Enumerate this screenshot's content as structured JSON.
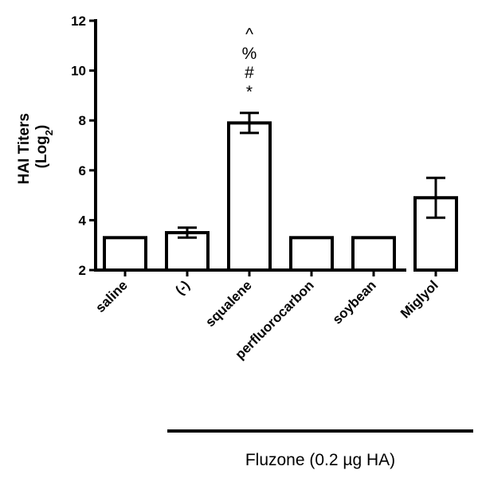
{
  "chart_data": {
    "type": "bar",
    "title": "",
    "ylabel_line1": "HAI Titers",
    "ylabel_line2_prefix": "(Log",
    "ylabel_line2_sub": "2",
    "ylabel_line2_suffix": ")",
    "ylim": [
      2,
      12
    ],
    "yticks": [
      2,
      4,
      6,
      8,
      10,
      12
    ],
    "categories": [
      "saline",
      "(-)",
      "squalene",
      "perfluorocarbon",
      "soybean",
      "Miglyol"
    ],
    "values": [
      3.3,
      3.5,
      7.9,
      3.3,
      3.3,
      4.9
    ],
    "errors": [
      0,
      0.2,
      0.4,
      0,
      0,
      0.8
    ],
    "annotations": [
      {
        "category": "squalene",
        "lines": [
          "^",
          "%",
          "#",
          "*"
        ]
      }
    ],
    "group": {
      "label": "Fluzone (0.2 µg HA)",
      "from_category": "(-)",
      "to_category": "Miglyol"
    },
    "grid": false,
    "legend": "none"
  }
}
